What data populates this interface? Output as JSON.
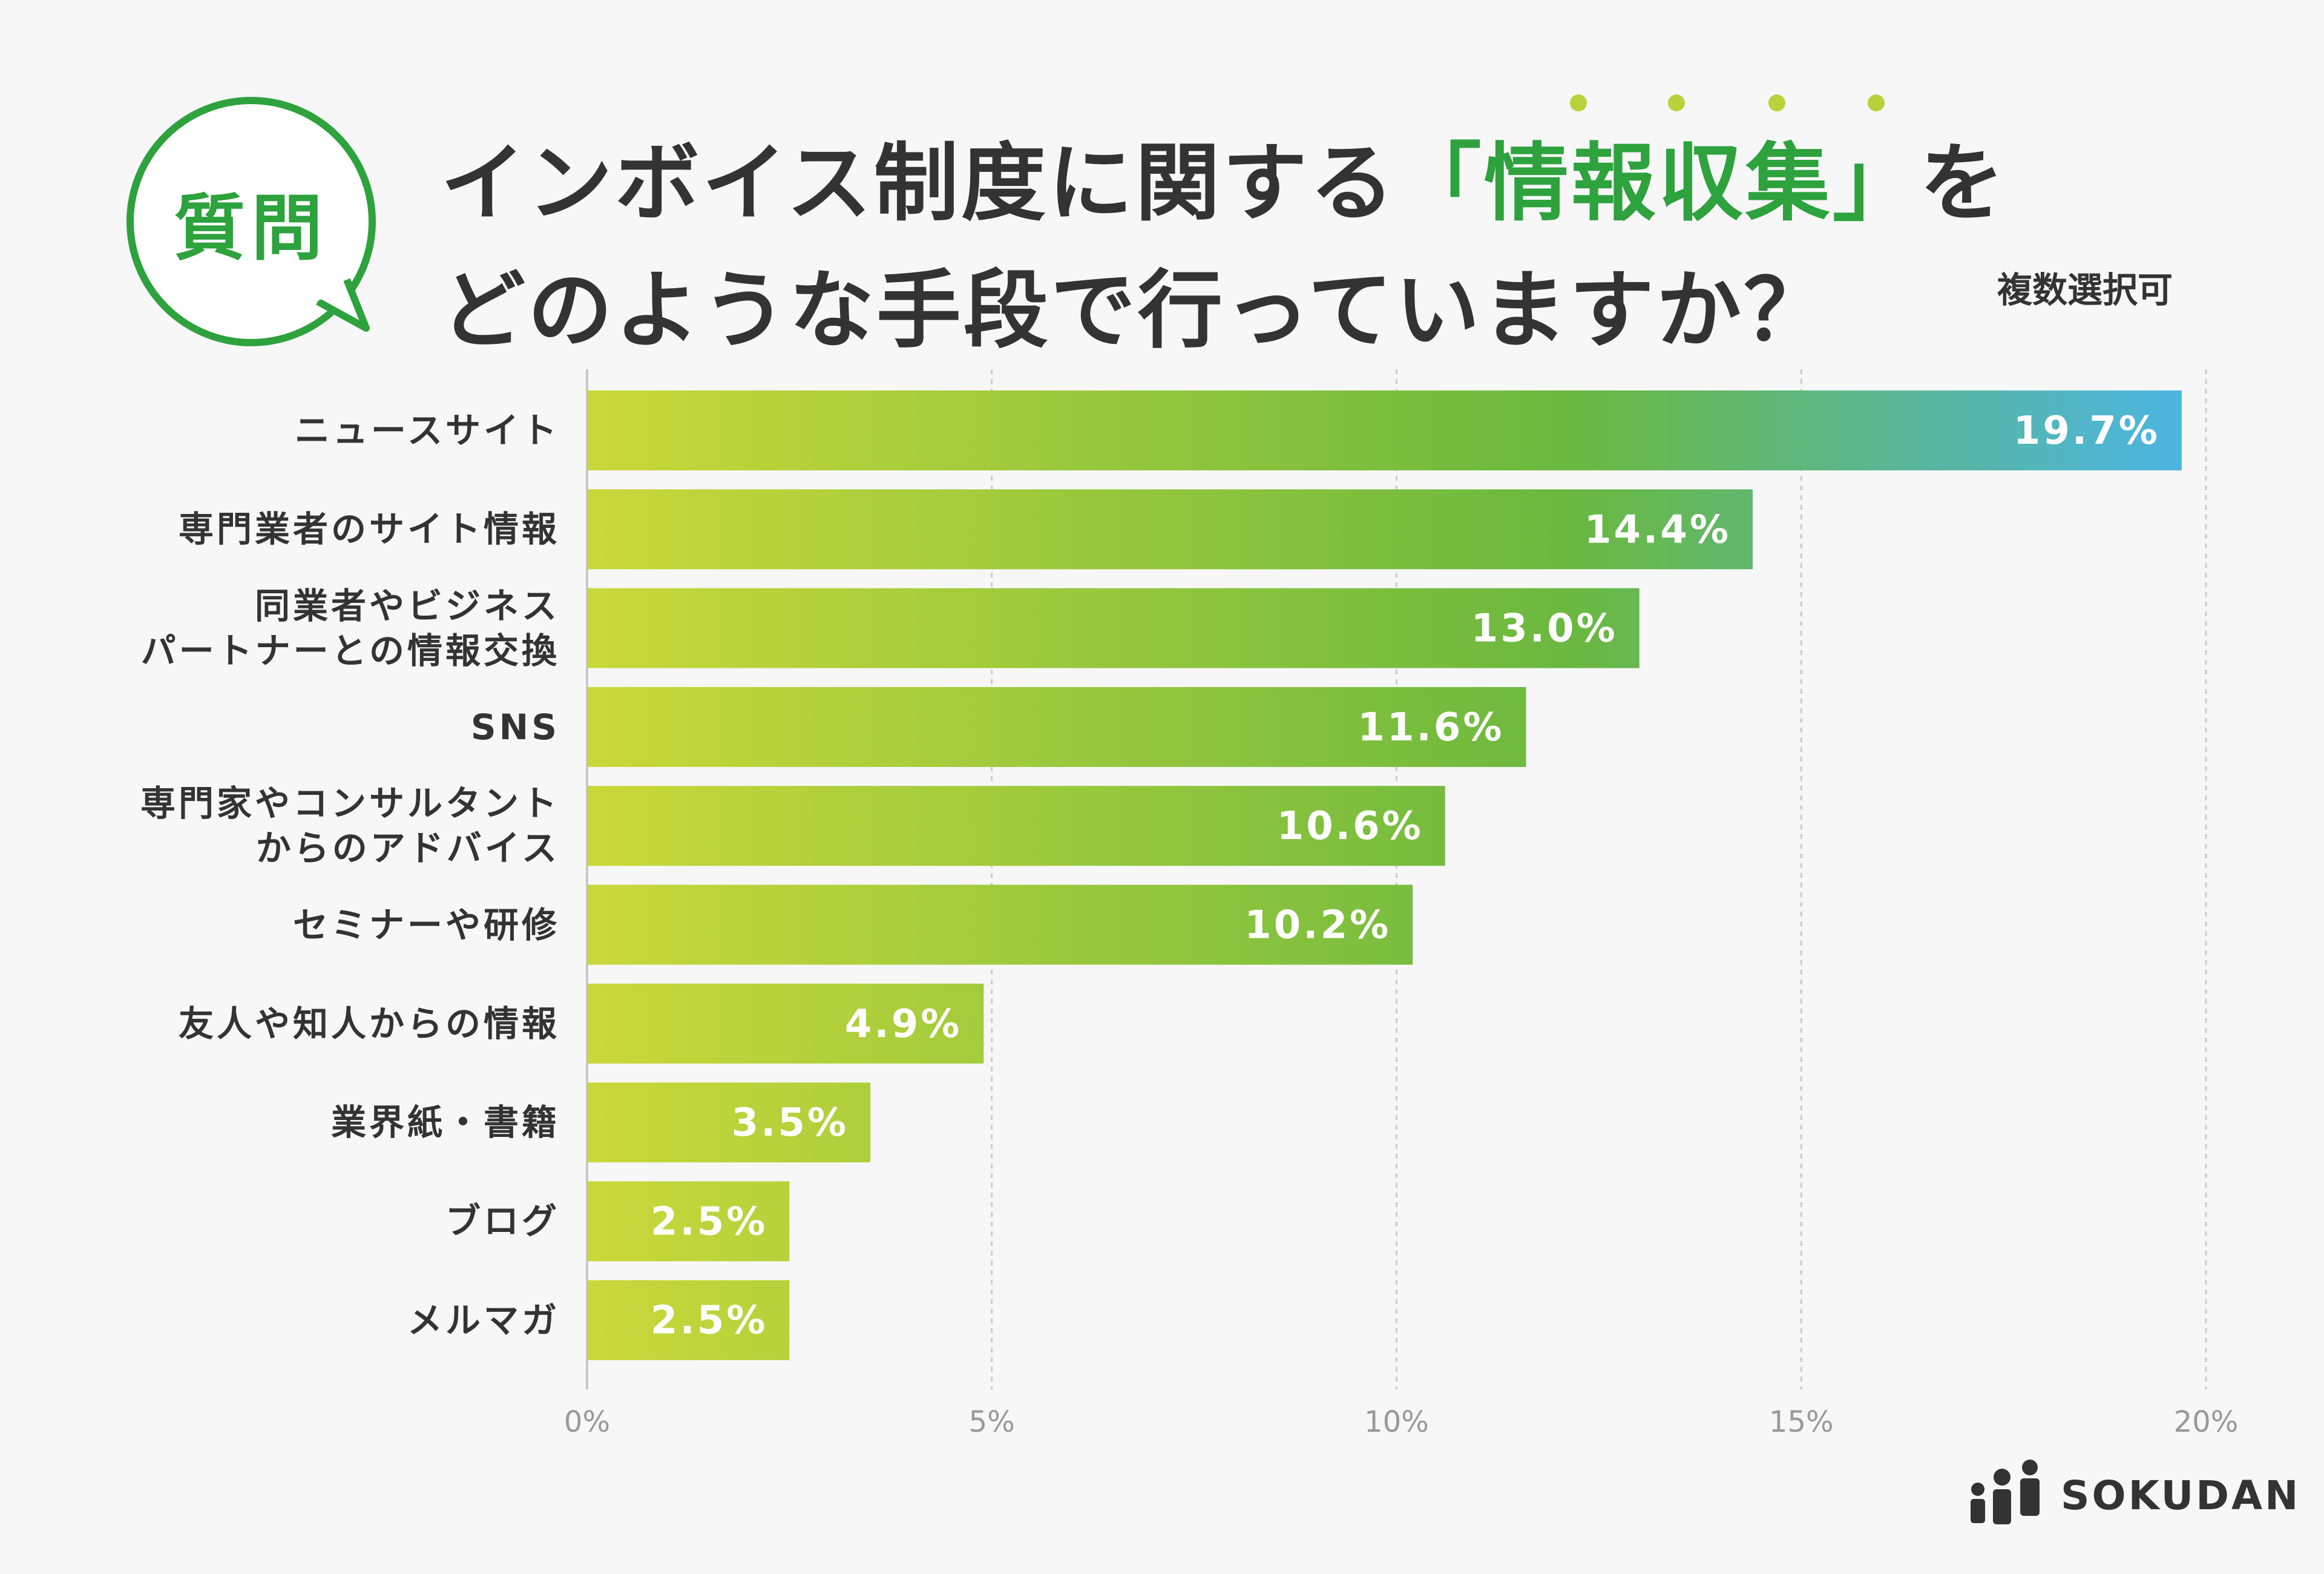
{
  "badge": {
    "label": "質問"
  },
  "title": {
    "line1_before": "インボイス制度に関する",
    "line1_highlight": "「情報収集」",
    "line1_after": "を",
    "line2": "どのような手段で行っていますか？"
  },
  "note": "複数選択可",
  "colors": {
    "accent_green": "#2da23d",
    "bar_start": "#c9d83a",
    "bar_mid": "#6ab83f",
    "bar_end": "#4db5e0",
    "text": "#333333",
    "grid": "#cccccc"
  },
  "chart_data": {
    "type": "bar",
    "orientation": "horizontal",
    "title": "インボイス制度に関する「情報収集」をどのような手段で行っていますか？",
    "categories": [
      "ニュースサイト",
      "専門業者のサイト情報",
      "同業者やビジネス\nパートナーとの情報交換",
      "SNS",
      "専門家やコンサルタント\nからのアドバイス",
      "セミナーや研修",
      "友人や知人からの情報",
      "業界紙・書籍",
      "ブログ",
      "メルマガ"
    ],
    "values": [
      19.7,
      14.4,
      13.0,
      11.6,
      10.6,
      10.2,
      4.9,
      3.5,
      2.5,
      2.5
    ],
    "value_labels": [
      "19.7%",
      "14.4%",
      "13.0%",
      "11.6%",
      "10.6%",
      "10.2%",
      "4.9%",
      "3.5%",
      "2.5%",
      "2.5%"
    ],
    "xlim": [
      0,
      20
    ],
    "xticks": [
      0,
      5,
      10,
      15,
      20
    ],
    "xtick_labels": [
      "0%",
      "5%",
      "10%",
      "15%",
      "20%"
    ],
    "grid": true
  },
  "logo": {
    "text": "SOKUDAN"
  }
}
